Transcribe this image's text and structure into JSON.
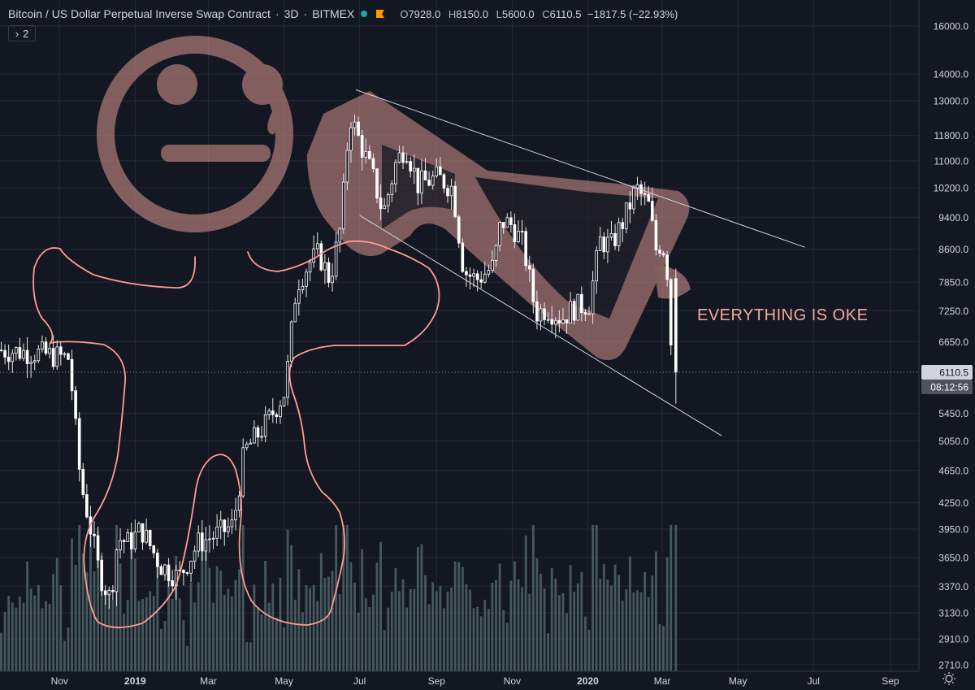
{
  "header": {
    "symbol": "Bitcoin / US Dollar Perpetual Inverse Swap Contract",
    "interval": "3D",
    "exchange": "BITMEX",
    "sep1": "·",
    "sep2": "·",
    "o_label": "O",
    "o_value": "7928.0",
    "h_label": "H",
    "h_value": "8150.0",
    "l_label": "L",
    "l_value": "5600.0",
    "c_label": "C",
    "c_value": "6110.5",
    "change": "−1817.5 (−22.93%)"
  },
  "collapse_button": {
    "chevron": "›",
    "count": "2"
  },
  "price_axis": {
    "labels": [
      "16000.0",
      "14000.0",
      "13000.0",
      "11800.0",
      "11000.0",
      "10200.0",
      "9400.0",
      "8600.0",
      "7850.0",
      "7250.0",
      "6650.0",
      "5450.0",
      "5050.0",
      "4650.0",
      "4250.0",
      "3950.0",
      "3650.0",
      "3370.0",
      "3130.0",
      "2910.0",
      "2710.0"
    ],
    "current_price": "6110.5",
    "countdown": "08:12:56"
  },
  "time_axis": {
    "labels": [
      "Nov",
      "2019",
      "Mar",
      "May",
      "Jul",
      "Sep",
      "Nov",
      "2020",
      "Mar",
      "May",
      "Jul",
      "Sep"
    ],
    "bold": [
      "2019",
      "2020"
    ]
  },
  "annotation": {
    "text": "EVERYTHING IS OKE"
  },
  "colors": {
    "background": "#131722",
    "up": "#ffffff",
    "down": "#ffffff",
    "volume": "#4f6466",
    "drawing": "#ff9b91",
    "overlay": "#c98b85",
    "annotation": "#f3a89e"
  },
  "icons": [
    "sun-icon"
  ],
  "chart_data": {
    "type": "candlestick",
    "log_scale": true,
    "ylim": [
      2660,
      17200
    ],
    "x_range": [
      "2018-09-14",
      "2020-09-24"
    ],
    "interval_days": 3,
    "first_candle": "2018-09-15",
    "current": {
      "open": 7928.0,
      "high": 8150.0,
      "low": 5600.0,
      "close": 6110.5
    },
    "anchor_closes": [
      [
        "2018-09-15",
        6500
      ],
      [
        "2018-10-15",
        6450
      ],
      [
        "2018-11-12",
        6350
      ],
      [
        "2018-11-15",
        5600
      ],
      [
        "2018-11-21",
        4500
      ],
      [
        "2018-11-27",
        4100
      ],
      [
        "2018-12-06",
        3500
      ],
      [
        "2018-12-15",
        3250
      ],
      [
        "2018-12-21",
        3850
      ],
      [
        "2018-12-30",
        3800
      ],
      [
        "2019-01-09",
        3950
      ],
      [
        "2019-01-24",
        3580
      ],
      [
        "2019-02-08",
        3450
      ],
      [
        "2019-02-24",
        3800
      ],
      [
        "2019-03-09",
        3880
      ],
      [
        "2019-03-24",
        3990
      ],
      [
        "2019-04-02",
        4900
      ],
      [
        "2019-04-20",
        5300
      ],
      [
        "2019-05-05",
        5800
      ],
      [
        "2019-05-14",
        7800
      ],
      [
        "2019-05-25",
        8300
      ],
      [
        "2019-06-01",
        8500
      ],
      [
        "2019-06-10",
        7900
      ],
      [
        "2019-06-19",
        9200
      ],
      [
        "2019-06-26",
        12500
      ],
      [
        "2019-07-05",
        11500
      ],
      [
        "2019-07-14",
        10600
      ],
      [
        "2019-07-23",
        9500
      ],
      [
        "2019-08-02",
        10900
      ],
      [
        "2019-08-10",
        11500
      ],
      [
        "2019-08-20",
        10300
      ],
      [
        "2019-09-05",
        10500
      ],
      [
        "2019-09-17",
        10200
      ],
      [
        "2019-09-26",
        8100
      ],
      [
        "2019-10-06",
        7900
      ],
      [
        "2019-10-20",
        8200
      ],
      [
        "2019-10-26",
        9300
      ],
      [
        "2019-11-04",
        9200
      ],
      [
        "2019-11-13",
        8700
      ],
      [
        "2019-11-23",
        7200
      ],
      [
        "2019-12-02",
        7300
      ],
      [
        "2019-12-14",
        7100
      ],
      [
        "2019-12-23",
        7300
      ],
      [
        "2020-01-05",
        7400
      ],
      [
        "2020-01-14",
        8800
      ],
      [
        "2020-01-23",
        8700
      ],
      [
        "2020-02-03",
        9400
      ],
      [
        "2020-02-12",
        10200
      ],
      [
        "2020-02-22",
        9700
      ],
      [
        "2020-02-28",
        8600
      ],
      [
        "2020-03-04",
        8800
      ],
      [
        "2020-03-09",
        7928
      ],
      [
        "2020-03-12",
        6110.5
      ]
    ],
    "volume_note": "relative volume bars; visible, not labeled",
    "trendlines": [
      {
        "from": [
          "2019-06-28",
          13400
        ],
        "to": [
          "2020-06-24",
          8650
        ]
      },
      {
        "from": [
          "2019-07-01",
          9450
        ],
        "to": [
          "2020-04-18",
          5120
        ]
      }
    ],
    "grid": true,
    "legend": "top-left"
  }
}
